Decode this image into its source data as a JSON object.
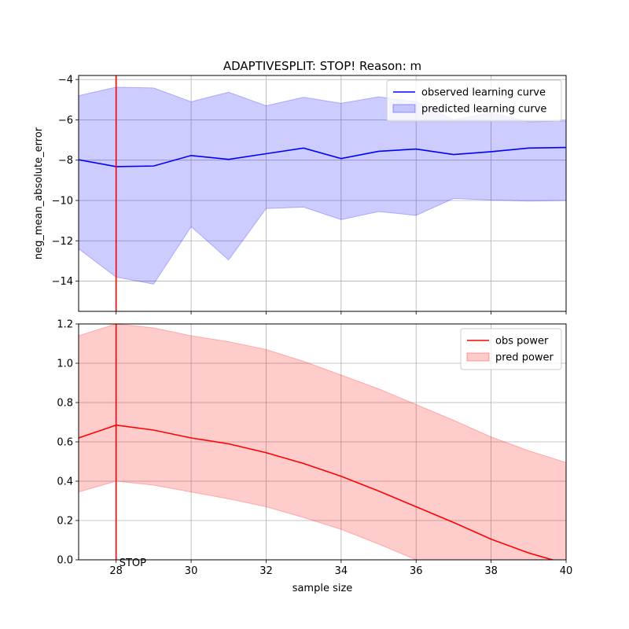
{
  "chart_data": [
    {
      "type": "line",
      "title": "ADAPTIVESPLIT: STOP!  Reason: m",
      "xlabel": "",
      "ylabel": "neg_mean_absolute_error",
      "xlim": [
        27,
        40
      ],
      "ylim": [
        -15.5,
        -3.8
      ],
      "xticks": [
        28,
        30,
        32,
        34,
        36,
        38,
        40
      ],
      "yticks": [
        -14,
        -12,
        -10,
        -8,
        -6,
        -4
      ],
      "grid": true,
      "legend_position": "top-right",
      "series": [
        {
          "name": "observed learning curve",
          "kind": "line",
          "color": "#0000ff",
          "x": [
            27,
            28,
            29,
            30,
            31,
            32,
            33,
            34,
            35,
            36,
            37,
            38,
            39,
            40
          ],
          "y": [
            -7.98,
            -8.32,
            -8.29,
            -7.77,
            -7.96,
            -7.68,
            -7.4,
            -7.92,
            -7.56,
            -7.45,
            -7.72,
            -7.58,
            -7.4,
            -7.37
          ]
        },
        {
          "name": "predicted learning curve",
          "kind": "band",
          "color": "#0000ff",
          "x": [
            27,
            28,
            29,
            30,
            31,
            32,
            33,
            34,
            35,
            36,
            37,
            38,
            39,
            40
          ],
          "upper": [
            -4.8,
            -4.38,
            -4.42,
            -5.1,
            -4.63,
            -5.3,
            -4.88,
            -5.18,
            -4.86,
            -5.1,
            -6.0,
            -5.65,
            -6.1,
            -6.05
          ],
          "lower": [
            -12.4,
            -13.8,
            -14.15,
            -11.3,
            -12.95,
            -10.4,
            -10.33,
            -10.95,
            -10.55,
            -10.74,
            -9.9,
            -9.98,
            -10.03,
            -10.0
          ]
        }
      ],
      "vline": {
        "x": 28,
        "color": "#ff0000"
      }
    },
    {
      "type": "line",
      "title": "",
      "xlabel": "sample size",
      "ylabel": "",
      "xlim": [
        27,
        40
      ],
      "ylim": [
        0.0,
        1.2
      ],
      "xticks": [
        28,
        30,
        32,
        34,
        36,
        38,
        40
      ],
      "yticks": [
        0.0,
        0.2,
        0.4,
        0.6,
        0.8,
        1.0,
        1.2
      ],
      "grid": true,
      "legend_position": "top-right",
      "series": [
        {
          "name": "obs power",
          "kind": "line",
          "color": "#ff0000",
          "x": [
            27,
            28,
            29,
            30,
            31,
            32,
            33,
            34,
            35,
            36,
            37,
            38,
            39,
            40
          ],
          "y": [
            0.62,
            0.685,
            0.66,
            0.62,
            0.59,
            0.545,
            0.49,
            0.425,
            0.35,
            0.27,
            0.19,
            0.105,
            0.035,
            -0.02
          ]
        },
        {
          "name": "pred power",
          "kind": "band",
          "color": "#ff0000",
          "x": [
            27,
            28,
            29,
            30,
            31,
            32,
            33,
            34,
            35,
            36,
            37,
            38,
            39,
            40
          ],
          "upper": [
            1.14,
            1.2,
            1.18,
            1.14,
            1.11,
            1.07,
            1.01,
            0.94,
            0.87,
            0.79,
            0.71,
            0.625,
            0.555,
            0.495
          ],
          "lower": [
            0.345,
            0.4,
            0.38,
            0.345,
            0.31,
            0.27,
            0.215,
            0.155,
            0.08,
            0.0,
            -0.05,
            -0.1,
            -0.15,
            -0.2
          ]
        }
      ],
      "vline": {
        "x": 28,
        "color": "#ff0000"
      },
      "annotations": [
        {
          "text": "STOP",
          "x": 28,
          "y": 0.0
        }
      ]
    }
  ]
}
